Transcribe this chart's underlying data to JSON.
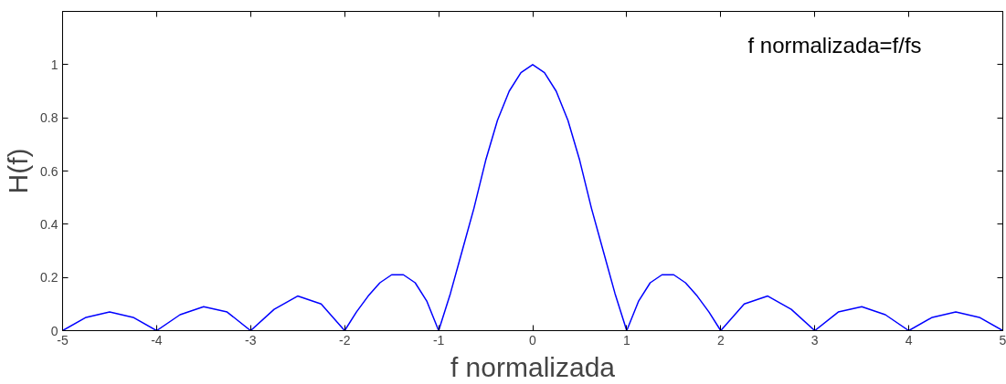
{
  "chart_data": {
    "type": "line",
    "xlabel": "f normalizada",
    "ylabel": "H(f)",
    "annotations": [
      "f normalizada=f/fs"
    ],
    "xlim": [
      -5,
      5
    ],
    "ylim": [
      0,
      1.2
    ],
    "xticks": [
      -5,
      -4,
      -3,
      -2,
      -1,
      0,
      1,
      2,
      3,
      4,
      5
    ],
    "yticks": [
      0,
      0.2,
      0.4,
      0.6,
      0.8,
      1
    ],
    "grid": false,
    "marker": "none",
    "line_style": "solid",
    "series": [
      {
        "color": "#0000ff",
        "x": [
          -5,
          -4.75,
          -4.5,
          -4.25,
          -4,
          -3.75,
          -3.5,
          -3.25,
          -3,
          -2.75,
          -2.5,
          -2.25,
          -2,
          -1.875,
          -1.75,
          -1.625,
          -1.5,
          -1.375,
          -1.25,
          -1.125,
          -1,
          -0.875,
          -0.75,
          -0.625,
          -0.5,
          -0.375,
          -0.25,
          -0.125,
          0,
          0.125,
          0.25,
          0.375,
          0.5,
          0.625,
          0.75,
          0.875,
          1,
          1.125,
          1.25,
          1.375,
          1.5,
          1.625,
          1.75,
          1.875,
          2,
          2.25,
          2.5,
          2.75,
          3,
          3.25,
          3.5,
          3.75,
          4,
          4.25,
          4.5,
          4.75,
          5
        ],
        "values": [
          0,
          0.05,
          0.07,
          0.05,
          0,
          0.06,
          0.09,
          0.07,
          0,
          0.08,
          0.13,
          0.1,
          0,
          0.07,
          0.13,
          0.18,
          0.21,
          0.21,
          0.18,
          0.11,
          0,
          0.14,
          0.3,
          0.46,
          0.64,
          0.79,
          0.9,
          0.97,
          1,
          0.97,
          0.9,
          0.79,
          0.64,
          0.46,
          0.3,
          0.14,
          0,
          0.11,
          0.18,
          0.21,
          0.21,
          0.18,
          0.13,
          0.07,
          0,
          0.1,
          0.13,
          0.08,
          0,
          0.07,
          0.09,
          0.06,
          0,
          0.05,
          0.07,
          0.05,
          0
        ]
      }
    ]
  }
}
